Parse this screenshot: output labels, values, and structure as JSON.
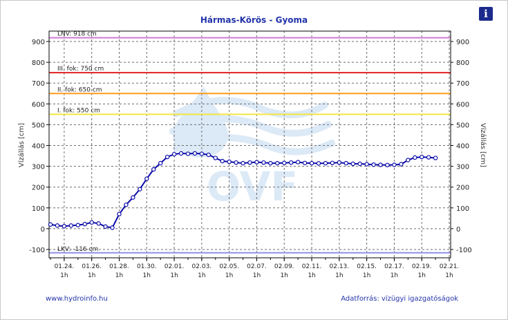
{
  "title": "Hármas-Körös - Gyoma",
  "info_glyph": "i",
  "footer": {
    "website": "www.hydroinfo.hu",
    "source": "Adatforrás: vízügyi igazgatóságok"
  },
  "watermark_text": "OVF",
  "colors": {
    "series": "#0a0aa8",
    "lnv": "#d07ad0",
    "level3": "#e02020",
    "level2": "#ff9a1a",
    "level1": "#f2e640",
    "lkv": "#8f8fe8",
    "title": "#2233aa"
  },
  "chart_data": {
    "type": "line",
    "ylabel_left": "Vízállás [cm]",
    "ylabel_right": "Vízállás [cm]",
    "ylim": [
      -140,
      950
    ],
    "y_ticks": [
      -100,
      0,
      100,
      200,
      300,
      400,
      500,
      600,
      700,
      800,
      900
    ],
    "x_ticks": [
      "01.24.",
      "01.26.",
      "01.28.",
      "01.30.",
      "02.01.",
      "02.03.",
      "02.05.",
      "02.07.",
      "02.09.",
      "02.11.",
      "02.13.",
      "02.15.",
      "02.17.",
      "02.19.",
      "02.21."
    ],
    "x_tick_sublabel": "1h",
    "x_tick_days": [
      1,
      3,
      5,
      7,
      9,
      11,
      13,
      15,
      17,
      19,
      21,
      23,
      25,
      27,
      29
    ],
    "x_range_days": [
      -0.1,
      29.1
    ],
    "x_unit_note": "days counted from 01.23.",
    "reference_lines": [
      {
        "label": "LNV: 918 cm",
        "value": 918,
        "color": "#d07ad0"
      },
      {
        "label": "III. fok: 750 cm",
        "value": 750,
        "color": "#e02020"
      },
      {
        "label": "II. fok: 650 cm",
        "value": 650,
        "color": "#ff9a1a"
      },
      {
        "label": "I. fok: 550 cm",
        "value": 550,
        "color": "#f2e640"
      },
      {
        "label": "LKV: -116 cm",
        "value": -116,
        "color": "#8f8fe8"
      }
    ],
    "series": [
      {
        "x": [
          0.0,
          0.5,
          1.0,
          1.5,
          2.0,
          2.5,
          3.0,
          3.5,
          4.0,
          4.5,
          5.0,
          5.5,
          6.0,
          6.5,
          7.0,
          7.5,
          8.0,
          8.5,
          9.0,
          9.5,
          10.0,
          10.5,
          11.0,
          11.5,
          12.0,
          12.5,
          13.0,
          13.5,
          14.0,
          14.5,
          15.0,
          15.5,
          16.0,
          16.5,
          17.0,
          17.5,
          18.0,
          18.5,
          19.0,
          19.5,
          20.0,
          20.5,
          21.0,
          21.5,
          22.0,
          22.5,
          23.0,
          23.5,
          24.0,
          24.5,
          25.0,
          25.5,
          26.0,
          26.5,
          27.0,
          27.5,
          28.0
        ],
        "values": [
          20,
          15,
          12,
          15,
          17,
          22,
          30,
          25,
          10,
          5,
          70,
          115,
          150,
          190,
          240,
          285,
          315,
          345,
          358,
          362,
          360,
          362,
          360,
          355,
          340,
          325,
          322,
          318,
          315,
          318,
          320,
          318,
          315,
          315,
          316,
          318,
          320,
          316,
          315,
          314,
          315,
          316,
          318,
          315,
          312,
          312,
          310,
          308,
          307,
          306,
          307,
          310,
          330,
          342,
          345,
          343,
          340
        ]
      }
    ]
  }
}
